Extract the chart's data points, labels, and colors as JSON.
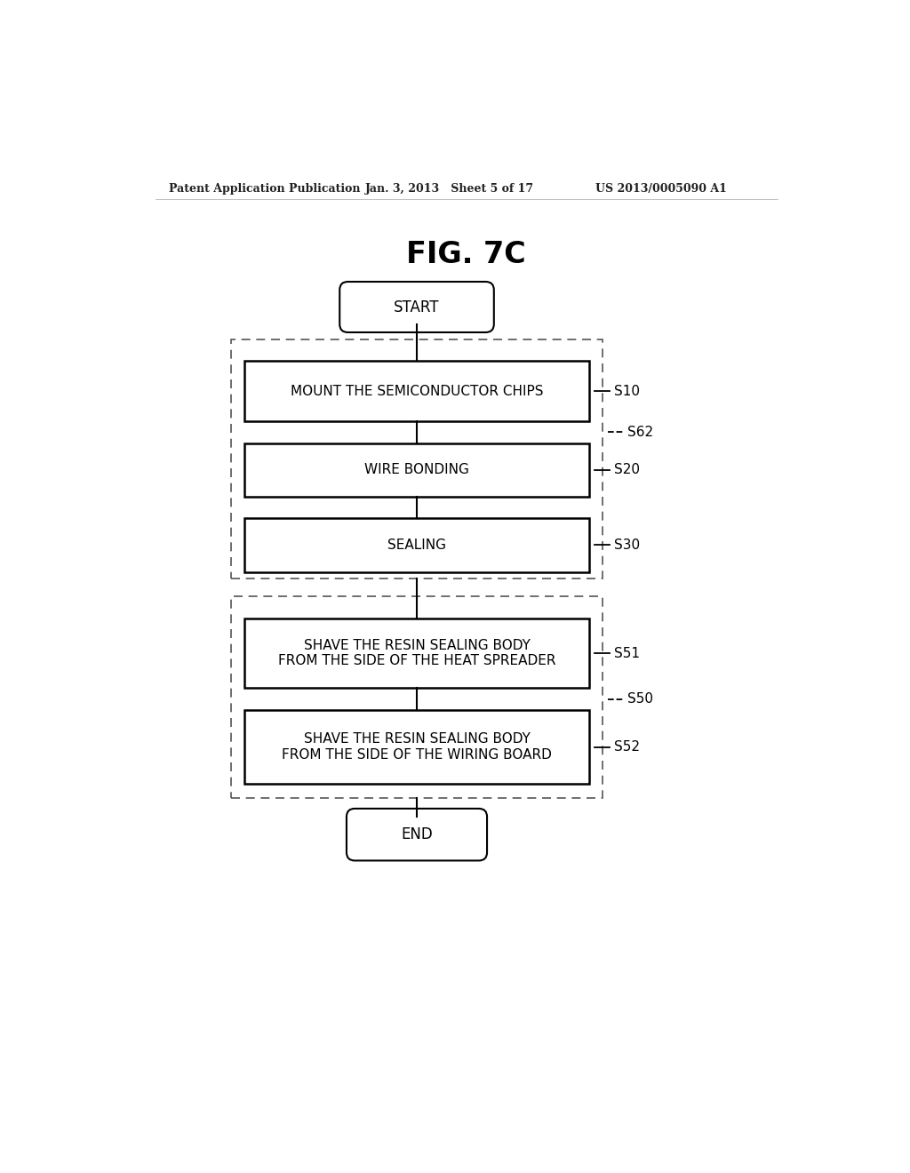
{
  "title": "FIG. 7C",
  "header_left": "Patent Application Publication",
  "header_mid": "Jan. 3, 2013   Sheet 5 of 17",
  "header_right": "US 2013/0005090 A1",
  "bg_color": "#ffffff",
  "steps": [
    {
      "label": "MOUNT THE SEMICONDUCTOR CHIPS",
      "tag": "S10",
      "multiline": false
    },
    {
      "label": "WIRE BONDING",
      "tag": "S20",
      "multiline": false
    },
    {
      "label": "SEALING",
      "tag": "S30",
      "multiline": false
    },
    {
      "label": "SHAVE THE RESIN SEALING BODY\nFROM THE SIDE OF THE HEAT SPREADER",
      "tag": "S51",
      "multiline": true
    },
    {
      "label": "SHAVE THE RESIN SEALING BODY\nFROM THE SIDE OF THE WIRING BOARD",
      "tag": "S52",
      "multiline": true
    }
  ],
  "group1_tag": "S62",
  "group2_tag": "S50",
  "start_label": "START",
  "end_label": "END",
  "header_fontsize": 9,
  "title_fontsize": 24,
  "step_fontsize": 11,
  "tag_fontsize": 11,
  "terminal_fontsize": 12
}
